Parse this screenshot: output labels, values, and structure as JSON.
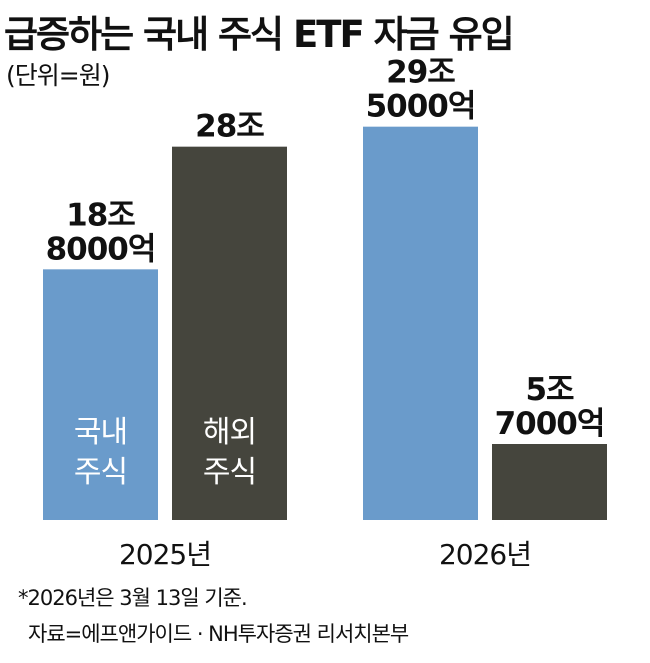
{
  "title": "급증하는 국내 주식 ETF 자금 유입",
  "unit_note": "(단위=원)",
  "footnote": "*2026년은 3월 13일 기준.",
  "source": "자료=에프앤가이드 · NH투자증권 리서치본부",
  "colors": {
    "domestic": "#6a9bcb",
    "overseas": "#45453d",
    "text": "#111111"
  },
  "chart_data": {
    "type": "bar",
    "categories": [
      "2025년",
      "2026년"
    ],
    "series": [
      {
        "name": "국내 주식",
        "inbar_label": [
          "국내",
          "주식"
        ],
        "values": [
          18.8,
          29.5
        ],
        "value_labels": [
          [
            "18조",
            "8000억"
          ],
          [
            "29조",
            "5000억"
          ]
        ]
      },
      {
        "name": "해외 주식",
        "inbar_label": [
          "해외",
          "주식"
        ],
        "values": [
          28,
          5.7
        ],
        "value_labels": [
          [
            "28조"
          ],
          [
            "5조",
            "7000억"
          ]
        ]
      }
    ],
    "units": "조원",
    "ylim": [
      0,
      30
    ],
    "axis_visible": false
  }
}
